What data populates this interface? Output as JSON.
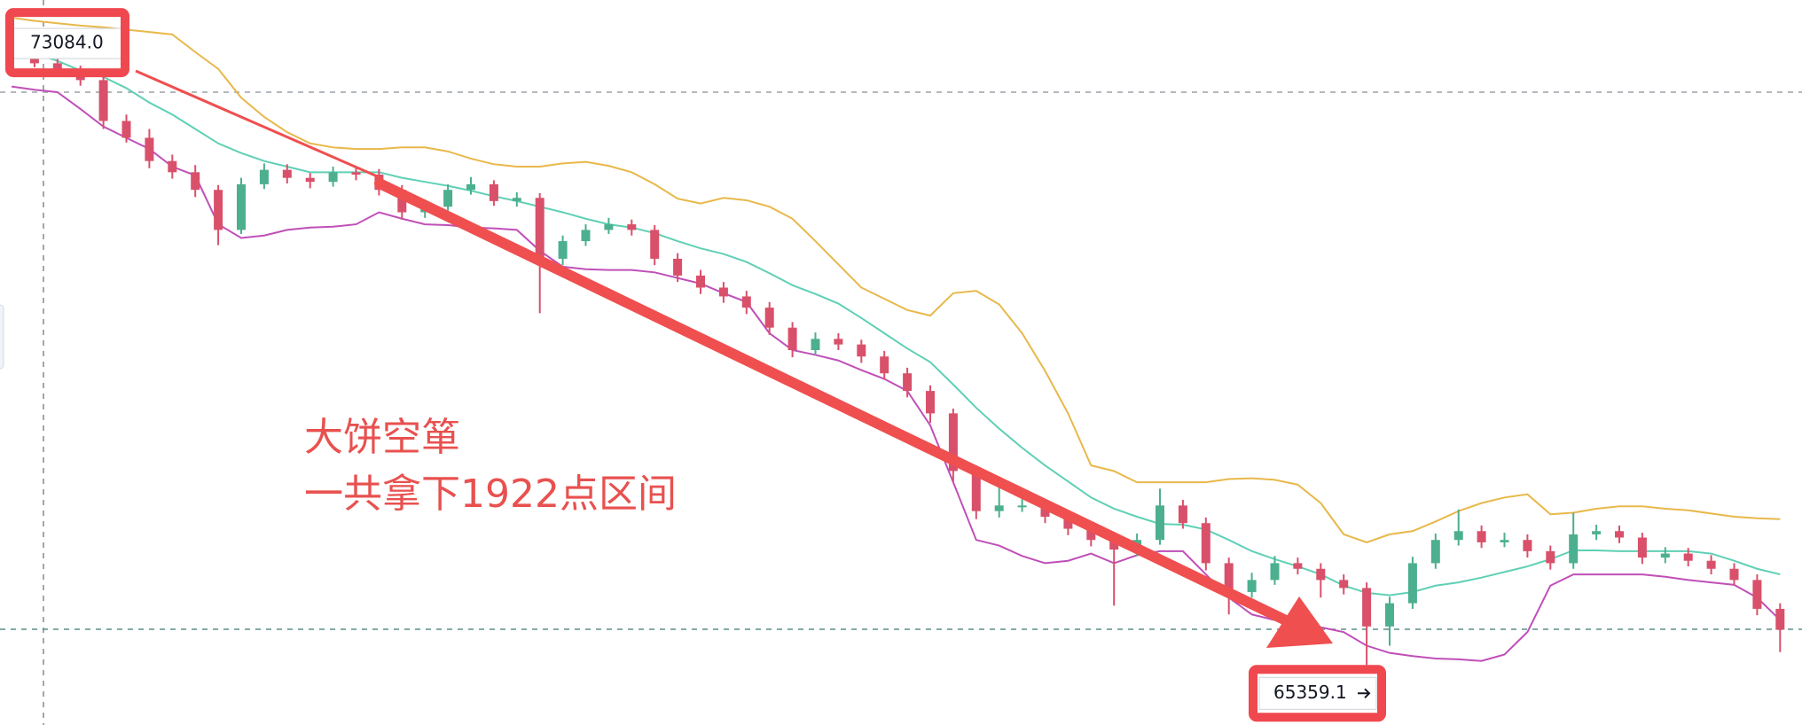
{
  "chart_data": {
    "type": "candlestick",
    "ylim": [
      64610,
      73660
    ],
    "up_color": "#4caf8f",
    "down_color": "#d9506a",
    "open": [
      72950,
      73010,
      72870,
      72770,
      72660,
      72150,
      71940,
      71650,
      71510,
      71290,
      70790,
      71360,
      71540,
      71440,
      71390,
      71510,
      71480,
      71290,
      71010,
      71080,
      71290,
      71360,
      71150,
      71190,
      70430,
      70650,
      70790,
      70860,
      70790,
      70430,
      70220,
      70070,
      69960,
      69820,
      69570,
      69290,
      69430,
      69360,
      69210,
      69000,
      68780,
      68500,
      67780,
      67280,
      67350,
      67350,
      67210,
      67060,
      66920,
      66800,
      66920,
      67350,
      67130,
      66630,
      66270,
      66420,
      66630,
      66560,
      66420,
      66320,
      65840,
      66130,
      66630,
      66920,
      67030,
      66890,
      66920,
      66780,
      66630,
      66990,
      67030,
      66950,
      66700,
      66750,
      66660,
      66560,
      66420,
      66060
    ],
    "high": [
      73084,
      73060,
      72930,
      72840,
      72720,
      72230,
      72050,
      71730,
      71600,
      71350,
      71440,
      71620,
      71610,
      71500,
      71580,
      71570,
      71550,
      71350,
      71170,
      71360,
      71450,
      71410,
      71260,
      71250,
      70720,
      70860,
      70940,
      70920,
      70850,
      70500,
      70290,
      70140,
      70030,
      69890,
      69640,
      69510,
      69500,
      69420,
      69280,
      69070,
      68850,
      68560,
      67850,
      67700,
      67430,
      67420,
      67280,
      67140,
      66990,
      67000,
      67560,
      67420,
      67200,
      66700,
      66510,
      66720,
      66700,
      66630,
      66490,
      66390,
      66210,
      66710,
      67000,
      67300,
      67100,
      67010,
      66990,
      66850,
      67260,
      67110,
      67100,
      67010,
      66830,
      66820,
      66730,
      66630,
      66490,
      66130
    ],
    "low": [
      72900,
      72820,
      72700,
      72590,
      72050,
      71880,
      71560,
      71430,
      71200,
      70600,
      70740,
      71300,
      71370,
      71310,
      71330,
      71410,
      71220,
      70920,
      70940,
      71030,
      71230,
      71090,
      71080,
      69750,
      70350,
      70590,
      70740,
      70720,
      70350,
      70140,
      69990,
      69880,
      69740,
      69480,
      69200,
      69230,
      69290,
      69130,
      68920,
      68700,
      68380,
      67650,
      67180,
      67200,
      67270,
      67130,
      66980,
      66840,
      66100,
      66720,
      66860,
      67060,
      66540,
      65990,
      66200,
      66360,
      66490,
      66200,
      66240,
      65359.1,
      65600,
      66060,
      66560,
      66850,
      66820,
      66830,
      66700,
      66550,
      66560,
      66920,
      66880,
      66620,
      66630,
      66590,
      66490,
      66350,
      65980,
      65520
    ],
    "close": [
      73010,
      72870,
      72770,
      72660,
      72150,
      71940,
      71650,
      71510,
      71290,
      70790,
      71360,
      71540,
      71440,
      71390,
      71510,
      71480,
      71290,
      71010,
      71080,
      71290,
      71360,
      71150,
      71190,
      70430,
      70650,
      70790,
      70860,
      70790,
      70430,
      70220,
      70070,
      69960,
      69820,
      69570,
      69290,
      69430,
      69360,
      69210,
      69000,
      68780,
      68500,
      67780,
      67280,
      67350,
      67350,
      67210,
      67060,
      66920,
      66800,
      66920,
      67350,
      67130,
      66630,
      66270,
      66420,
      66630,
      66560,
      66420,
      66320,
      65840,
      66130,
      66630,
      66920,
      67030,
      66890,
      66920,
      66780,
      66630,
      66990,
      67030,
      66950,
      66700,
      66750,
      66660,
      66560,
      66420,
      66060,
      65800
    ],
    "bands": [
      {
        "color": "#e8b84a",
        "values": [
          73440,
          73400,
          73370,
          73340,
          73320,
          73290,
          73260,
          73230,
          73010,
          72800,
          72440,
          72200,
          72010,
          71870,
          71820,
          71800,
          71800,
          71820,
          71820,
          71770,
          71680,
          71610,
          71580,
          71580,
          71620,
          71640,
          71590,
          71510,
          71360,
          71180,
          71120,
          71190,
          71160,
          71080,
          70930,
          70650,
          70360,
          70070,
          69930,
          69790,
          69720,
          70000,
          70030,
          69860,
          69500,
          69030,
          68500,
          67850,
          67780,
          67640,
          67640,
          67640,
          67640,
          67680,
          67690,
          67670,
          67610,
          67380,
          66990,
          66890,
          66990,
          67030,
          67150,
          67280,
          67380,
          67450,
          67490,
          67240,
          67260,
          67310,
          67340,
          67340,
          67310,
          67290,
          67250,
          67210,
          67190,
          67180
        ]
      },
      {
        "color": "#5fd0b5",
        "values": [
          73090,
          72990,
          72900,
          72780,
          72700,
          72560,
          72380,
          72230,
          72050,
          71870,
          71750,
          71650,
          71580,
          71510,
          71510,
          71510,
          71510,
          71440,
          71390,
          71340,
          71280,
          71210,
          71150,
          71080,
          71010,
          70930,
          70860,
          70820,
          70750,
          70650,
          70560,
          70490,
          70390,
          70250,
          70100,
          69990,
          69870,
          69690,
          69500,
          69310,
          69140,
          68860,
          68570,
          68310,
          68070,
          67850,
          67650,
          67450,
          67310,
          67210,
          67120,
          67110,
          67050,
          66920,
          66780,
          66680,
          66590,
          66490,
          66350,
          66260,
          66230,
          66270,
          66350,
          66390,
          66450,
          66520,
          66590,
          66680,
          66790,
          66790,
          66780,
          66780,
          66780,
          66780,
          66750,
          66660,
          66560,
          66490
        ]
      },
      {
        "color": "#c04fb8",
        "values": [
          72580,
          72540,
          72510,
          72300,
          72080,
          71940,
          71800,
          71580,
          71470,
          70860,
          70690,
          70720,
          70790,
          70820,
          70830,
          70860,
          71010,
          70930,
          70860,
          70850,
          70820,
          70810,
          70790,
          70530,
          70330,
          70300,
          70290,
          70290,
          70260,
          70190,
          70120,
          70000,
          69890,
          69500,
          69290,
          69230,
          69160,
          69040,
          68930,
          68780,
          68350,
          67640,
          66920,
          66850,
          66720,
          66630,
          66660,
          66750,
          66630,
          66730,
          66780,
          66780,
          66490,
          66200,
          65990,
          65920,
          65890,
          65830,
          65770,
          65600,
          65510,
          65470,
          65440,
          65430,
          65410,
          65490,
          65770,
          66350,
          66490,
          66490,
          66490,
          66490,
          66460,
          66420,
          66390,
          66360,
          66200,
          65920
        ]
      }
    ],
    "hlines": [
      72509,
      65805
    ],
    "price_labels": [
      {
        "value": 73084,
        "label": "73084.0"
      },
      {
        "value": 65359.1,
        "label": "65359.1"
      }
    ],
    "annotations": [
      "大饼空箪",
      "一共拿下1922点区间"
    ]
  }
}
